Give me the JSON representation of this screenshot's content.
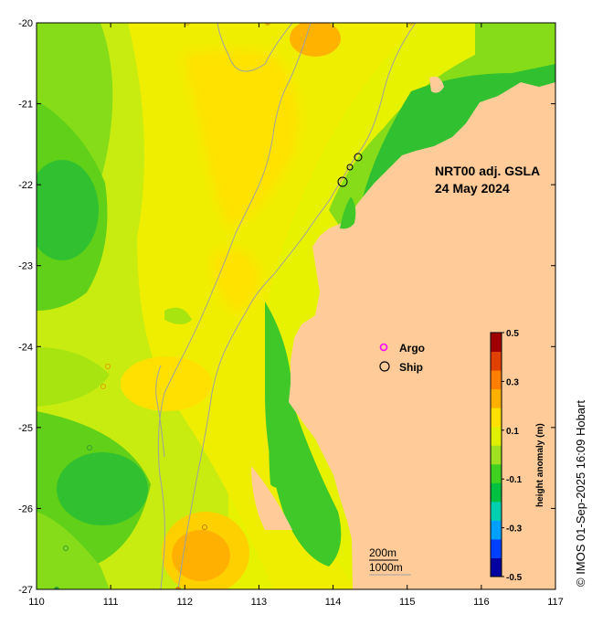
{
  "map": {
    "title_line1": "NRT00 adj. GSLA",
    "title_line2": "24 May 2024",
    "x_ticks": [
      "110",
      "111",
      "112",
      "113",
      "114",
      "115",
      "116",
      "117"
    ],
    "y_ticks": [
      "-20",
      "-21",
      "-22",
      "-23",
      "-24",
      "-25",
      "-26",
      "-27"
    ],
    "land_color": "#ffcc99",
    "contour_color": "#a0a0a0"
  },
  "legend": {
    "argo_label": "Argo",
    "ship_label": "Ship",
    "argo_color": "#ff00ff",
    "ship_color": "#000000"
  },
  "colorbar": {
    "title": "height anomaly (m)",
    "tick_labels": [
      "0.5",
      "0.3",
      "0.1",
      "-0.1",
      "-0.3",
      "-0.5"
    ],
    "colors": [
      "#0000a0",
      "#0040ff",
      "#00a0ff",
      "#00d0b0",
      "#00c040",
      "#40d020",
      "#a0e020",
      "#e0f000",
      "#ffe000",
      "#ffb000",
      "#ff8000",
      "#e04000",
      "#a00000"
    ]
  },
  "scale": {
    "label_200": "200m",
    "label_1000": "1000m"
  },
  "credit": "© IMOS 01-Sep-2025 16:09 Hobart"
}
